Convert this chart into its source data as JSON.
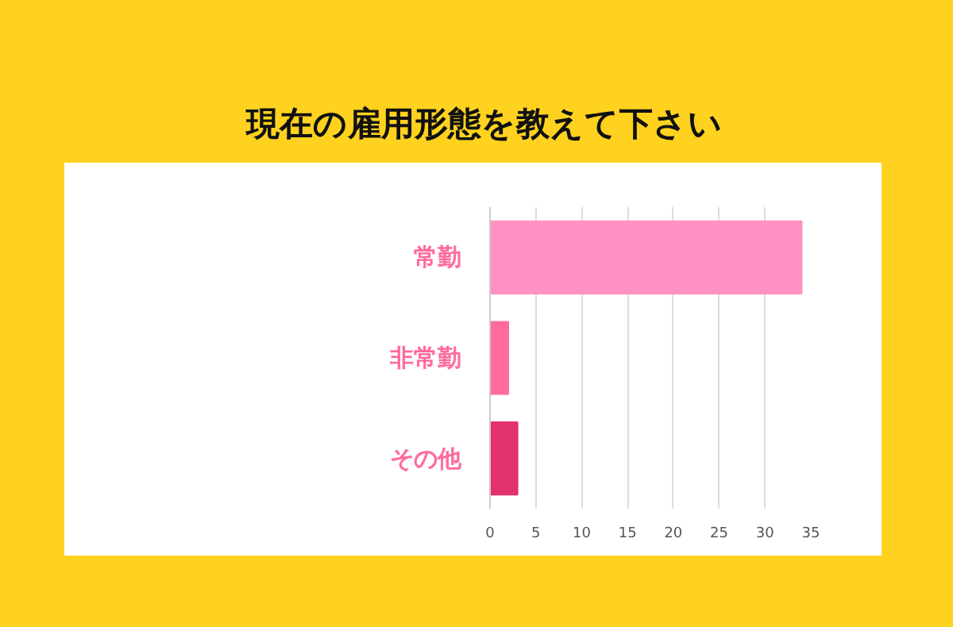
{
  "chart_data": {
    "type": "bar",
    "orientation": "horizontal",
    "title": "現在の雇用形態を教えて下さい",
    "categories": [
      "常勤",
      "非常勤",
      "その他"
    ],
    "values": [
      34,
      2,
      3
    ],
    "colors": [
      "#ff91c4",
      "#ff6b9f",
      "#e3306f"
    ],
    "xlim": [
      0,
      35
    ],
    "xticks": [
      0,
      5,
      10,
      15,
      20,
      25,
      30,
      35
    ],
    "grid": "x"
  }
}
